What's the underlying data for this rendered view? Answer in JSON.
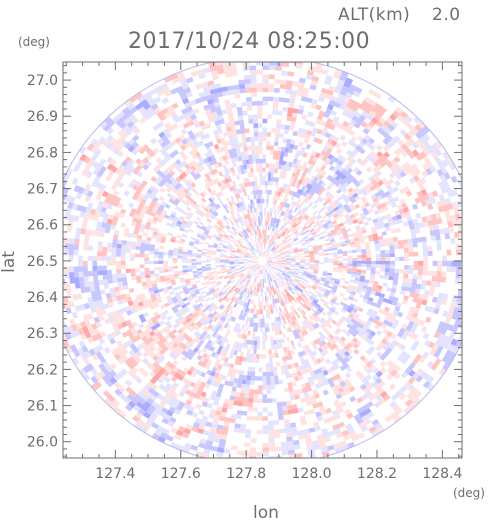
{
  "chart_data": {
    "type": "heatmap",
    "title": "2017/10/24 08:25:00",
    "altitude_label": "ALT(km)",
    "altitude_value": "2.0",
    "xlabel": "lon",
    "ylabel": "lat",
    "x_unit": "(deg)",
    "y_unit": "(deg)",
    "xlim": [
      127.24,
      128.46
    ],
    "ylim": [
      25.955,
      27.05
    ],
    "x_ticks": [
      "127.4",
      "127.6",
      "127.8",
      "128.0",
      "128.2",
      "128.4"
    ],
    "y_ticks": [
      "26.0",
      "26.1",
      "26.2",
      "26.3",
      "26.4",
      "26.5",
      "26.6",
      "26.7",
      "26.8",
      "26.9",
      "27.0"
    ],
    "radar_center": {
      "lon": 127.85,
      "lat": 26.5
    },
    "radar_range_deg": {
      "lon": 0.665,
      "lat": 0.565
    },
    "colors": {
      "positive": "#ff9a9a",
      "negative": "#9a9aff",
      "neutral": "#ffffff",
      "frame": "#6e6e6e"
    }
  }
}
